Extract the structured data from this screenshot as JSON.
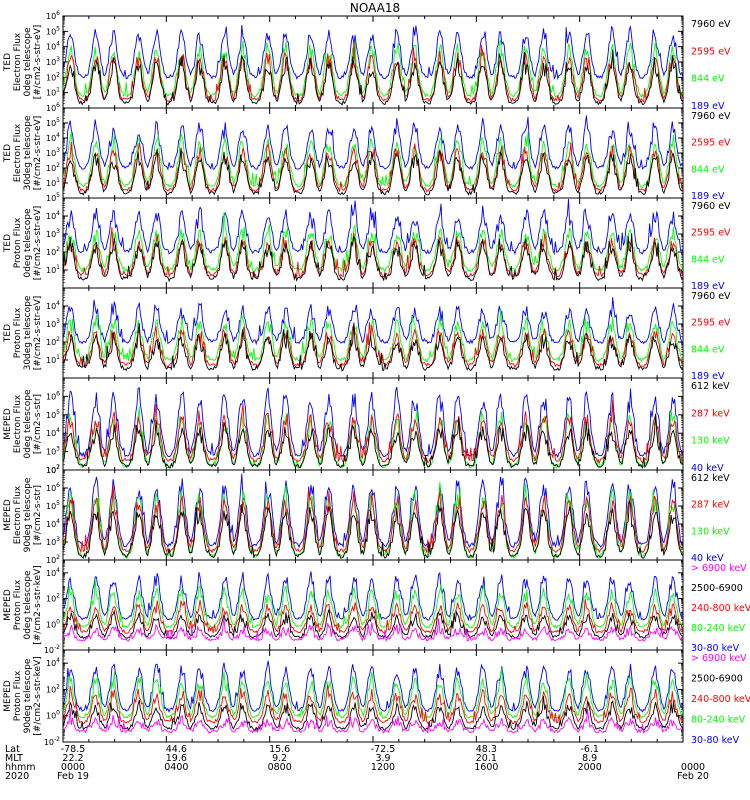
{
  "title": "NOAA18",
  "colors": {
    "black": "#000000",
    "red": "#ff0000",
    "green": "#00ff00",
    "blue": "#0000ff",
    "magenta": "#ff00ff"
  },
  "chart_data": [
    {
      "type": "line",
      "ylabel": [
        "TED",
        "Electron Flux",
        "0deg telescope",
        "[#/cm2-s-str-eV]"
      ],
      "ylog": true,
      "ylim_exp": [
        0,
        6
      ],
      "ytick_exponents": [
        1,
        2,
        3,
        4,
        5,
        6
      ],
      "series": [
        {
          "name": "7960 eV",
          "color": "#000000",
          "base_exp": 0.3,
          "peak_exp": 3.2
        },
        {
          "name": "2595 eV",
          "color": "#ff0000",
          "base_exp": 0.5,
          "peak_exp": 3.6
        },
        {
          "name": "844 eV",
          "color": "#00ff00",
          "base_exp": 0.8,
          "peak_exp": 4.2
        },
        {
          "name": "189 eV",
          "color": "#0000ff",
          "base_exp": 2.0,
          "peak_exp": 5.2
        }
      ]
    },
    {
      "type": "line",
      "ylabel": [
        "TED",
        "Electron Flux",
        "30deg telescope",
        "[#/cm2-s-str-eV]"
      ],
      "ylog": true,
      "ylim_exp": [
        0,
        6
      ],
      "ytick_exponents": [
        1,
        2,
        3,
        4,
        5,
        6
      ],
      "series": [
        {
          "name": "7960 eV",
          "color": "#000000",
          "base_exp": 0.3,
          "peak_exp": 3.0
        },
        {
          "name": "2595 eV",
          "color": "#ff0000",
          "base_exp": 0.5,
          "peak_exp": 3.5
        },
        {
          "name": "844 eV",
          "color": "#00ff00",
          "base_exp": 0.8,
          "peak_exp": 4.0
        },
        {
          "name": "189 eV",
          "color": "#0000ff",
          "base_exp": 2.0,
          "peak_exp": 5.0
        }
      ]
    },
    {
      "type": "line",
      "ylabel": [
        "TED",
        "Proton Flux",
        "0deg telescope",
        "[#/cm2-s-str-eV]"
      ],
      "ylog": true,
      "ylim_exp": [
        0,
        5
      ],
      "ytick_exponents": [
        1,
        2,
        3,
        4,
        5
      ],
      "series": [
        {
          "name": "7960 eV",
          "color": "#000000",
          "base_exp": 0.5,
          "peak_exp": 2.6
        },
        {
          "name": "2595 eV",
          "color": "#ff0000",
          "base_exp": 0.7,
          "peak_exp": 2.8
        },
        {
          "name": "844 eV",
          "color": "#00ff00",
          "base_exp": 1.0,
          "peak_exp": 3.4
        },
        {
          "name": "189 eV",
          "color": "#0000ff",
          "base_exp": 2.0,
          "peak_exp": 4.3
        }
      ]
    },
    {
      "type": "line",
      "ylabel": [
        "TED",
        "Proton Flux",
        "30deg telescope",
        "[#/cm2-s-str-eV]"
      ],
      "ylog": true,
      "ylim_exp": [
        0,
        5
      ],
      "ytick_exponents": [
        1,
        2,
        3,
        4
      ],
      "series": [
        {
          "name": "7960 eV",
          "color": "#000000",
          "base_exp": 0.5,
          "peak_exp": 2.4
        },
        {
          "name": "2595 eV",
          "color": "#ff0000",
          "base_exp": 0.7,
          "peak_exp": 2.7
        },
        {
          "name": "844 eV",
          "color": "#00ff00",
          "base_exp": 1.0,
          "peak_exp": 3.3
        },
        {
          "name": "189 eV",
          "color": "#0000ff",
          "base_exp": 2.0,
          "peak_exp": 4.0
        }
      ]
    },
    {
      "type": "line",
      "ylabel": [
        "MEPED",
        "Electron Flux",
        "0deg telescope",
        "[#/cm2-s-str]"
      ],
      "ylog": true,
      "ylim_exp": [
        2,
        7
      ],
      "ytick_exponents": [
        2,
        3,
        4,
        5,
        6
      ],
      "series": [
        {
          "name": "612 keV",
          "color": "#000000",
          "base_exp": 2.2,
          "peak_exp": 4.4
        },
        {
          "name": "287 keV",
          "color": "#ff0000",
          "base_exp": 2.5,
          "peak_exp": 5.0
        },
        {
          "name": "130 keV",
          "color": "#00ff00",
          "base_exp": 2.2,
          "peak_exp": 5.0
        },
        {
          "name": "40 keV",
          "color": "#0000ff",
          "base_exp": 2.8,
          "peak_exp": 6.4
        }
      ]
    },
    {
      "type": "line",
      "ylabel": [
        "MEPED",
        "Electron Flux",
        "90deg telescope",
        "[#/cm2-s-str]"
      ],
      "ylog": true,
      "ylim_exp": [
        2,
        7
      ],
      "ytick_exponents": [
        2,
        3,
        4,
        5,
        6,
        7
      ],
      "series": [
        {
          "name": "612 keV",
          "color": "#000000",
          "base_exp": 2.2,
          "peak_exp": 5.0
        },
        {
          "name": "287 keV",
          "color": "#ff0000",
          "base_exp": 2.5,
          "peak_exp": 5.6
        },
        {
          "name": "130 keV",
          "color": "#00ff00",
          "base_exp": 2.2,
          "peak_exp": 5.8
        },
        {
          "name": "40 keV",
          "color": "#0000ff",
          "base_exp": 2.8,
          "peak_exp": 6.6
        }
      ]
    },
    {
      "type": "line",
      "ylabel": [
        "MEPED",
        "Proton Flux",
        "0deg telescope",
        "[#/cm2-s-str-keV]"
      ],
      "ylog": true,
      "ylim_exp": [
        -2,
        5
      ],
      "ytick_exponents": [
        -2,
        0,
        2,
        4
      ],
      "series": [
        {
          "name": "> 6900 keV",
          "color": "#ff00ff",
          "base_exp": -1.2,
          "peak_exp": -0.3
        },
        {
          "name": "2500-6900",
          "color": "#000000",
          "base_exp": -1.0,
          "peak_exp": 0.8
        },
        {
          "name": "240-800 keV",
          "color": "#ff0000",
          "base_exp": -0.6,
          "peak_exp": 1.6
        },
        {
          "name": "80-240 keV",
          "color": "#00ff00",
          "base_exp": -0.2,
          "peak_exp": 2.8
        },
        {
          "name": "30-80 keV",
          "color": "#0000ff",
          "base_exp": 0.4,
          "peak_exp": 3.9
        }
      ]
    },
    {
      "type": "line",
      "ylabel": [
        "MEPED",
        "Proton Flux",
        "90deg telescope",
        "[#/cm2-s-str-keV]"
      ],
      "ylog": true,
      "ylim_exp": [
        -2,
        5
      ],
      "ytick_exponents": [
        -2,
        0,
        2,
        4
      ],
      "series": [
        {
          "name": "> 6900 keV",
          "color": "#ff00ff",
          "base_exp": -1.2,
          "peak_exp": -0.3
        },
        {
          "name": "2500-6900",
          "color": "#000000",
          "base_exp": -1.0,
          "peak_exp": 0.9
        },
        {
          "name": "240-800 keV",
          "color": "#ff0000",
          "base_exp": -0.5,
          "peak_exp": 1.8
        },
        {
          "name": "80-240 keV",
          "color": "#00ff00",
          "base_exp": -0.1,
          "peak_exp": 3.0
        },
        {
          "name": "30-80 keV",
          "color": "#0000ff",
          "base_exp": 0.4,
          "peak_exp": 4.0
        }
      ]
    }
  ],
  "footer": {
    "row_labels": [
      "Lat",
      "MLT",
      "hhmm",
      "2020"
    ],
    "columns": [
      {
        "lat": "-78.5",
        "mlt": "22.2",
        "hhmm": "0000",
        "date": "Feb 19"
      },
      {
        "lat": "44.6",
        "mlt": "19.6",
        "hhmm": "0400",
        "date": ""
      },
      {
        "lat": "15.6",
        "mlt": "9.2",
        "hhmm": "0800",
        "date": ""
      },
      {
        "lat": "-72.5",
        "mlt": "3.9",
        "hhmm": "1200",
        "date": ""
      },
      {
        "lat": "48.3",
        "mlt": "20.1",
        "hhmm": "1600",
        "date": ""
      },
      {
        "lat": "-6.1",
        "mlt": "8.9",
        "hhmm": "2000",
        "date": ""
      },
      {
        "lat": "",
        "mlt": "",
        "hhmm": "0000",
        "date": "Feb 20"
      }
    ]
  }
}
